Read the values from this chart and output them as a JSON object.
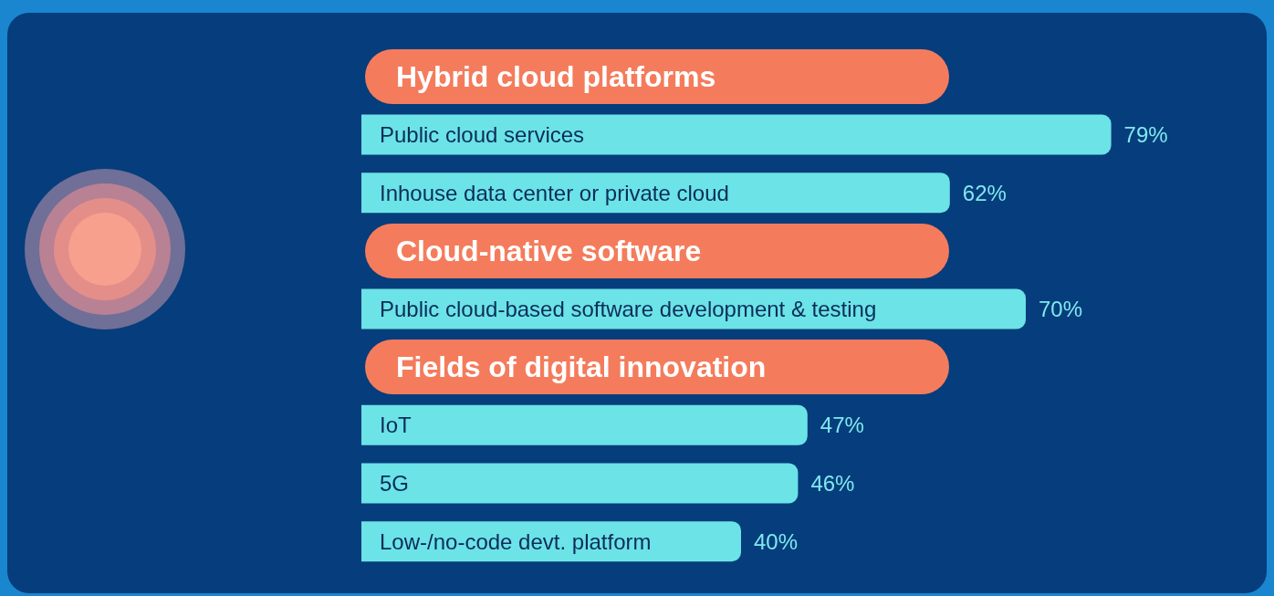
{
  "chart_data": {
    "type": "bar",
    "orientation": "horizontal",
    "categories": [
      "Hybrid cloud platforms",
      "Public cloud services",
      "Inhouse data center or private cloud",
      "Cloud-native software",
      "Public cloud-based software development & testing",
      "Fields of digital innovation",
      "IoT",
      "5G",
      "Low-/no-code devt. platform"
    ],
    "values": [
      null,
      79,
      62,
      null,
      70,
      null,
      47,
      46,
      40
    ],
    "value_labels": [
      null,
      "79%",
      "62%",
      null,
      "70%",
      null,
      "47%",
      "46%",
      "40%"
    ],
    "color": "#6ce3e6",
    "grid": false
  }
}
